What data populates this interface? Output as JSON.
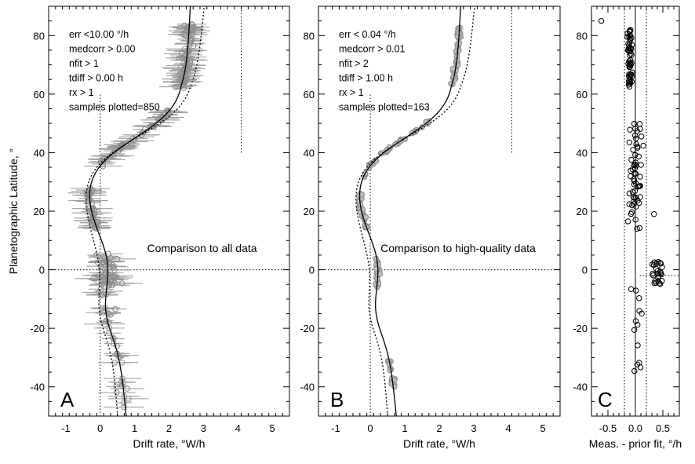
{
  "chart_data": [
    {
      "panel": "A",
      "type": "scatter",
      "xlabel": "Drift rate, °W/h",
      "ylabel": "Planetographic Latitude, °",
      "xlim": [
        -1.5,
        5.5
      ],
      "ylim": [
        -50,
        90
      ],
      "xticks": [
        -1,
        0,
        1,
        2,
        3,
        4,
        5
      ],
      "yticks": [
        -40,
        -20,
        0,
        20,
        40,
        60,
        80
      ],
      "legend": [
        "err <10.00 °/h",
        "medcorr > 0.00",
        "nfit >   1",
        "tdiff > 0.00 h",
        "rx >   1",
        "samples plotted=850"
      ],
      "annotation": "Comparison to all data",
      "series": [
        {
          "name": "measurements",
          "style": "gray-circles-with-error-bars",
          "samples": 850
        },
        {
          "name": "fit",
          "style": "solid"
        },
        {
          "name": "prior fit",
          "style": "dotted"
        }
      ]
    },
    {
      "panel": "B",
      "type": "scatter",
      "xlabel": "Drift rate, °W/h",
      "ylabel": "",
      "xlim": [
        -1.5,
        5.5
      ],
      "ylim": [
        -50,
        90
      ],
      "xticks": [
        -1,
        0,
        1,
        2,
        3,
        4,
        5
      ],
      "yticks": [
        -40,
        -20,
        0,
        20,
        40,
        60,
        80
      ],
      "legend": [
        "err < 0.04 °/h",
        "medcorr > 0.01",
        "nfit >   2",
        "tdiff > 1.00 h",
        "rx >   1",
        "samples plotted=163"
      ],
      "annotation": "Comparison to high-quality data",
      "series": [
        {
          "name": "measurements",
          "style": "gray-circles",
          "samples": 163
        },
        {
          "name": "fit",
          "style": "solid"
        },
        {
          "name": "prior fit",
          "style": "dotted"
        }
      ]
    },
    {
      "panel": "C",
      "type": "scatter",
      "xlabel": "Meas. - prior fit, °/h",
      "ylabel": "",
      "xlim": [
        -0.8,
        0.8
      ],
      "ylim": [
        -50,
        90
      ],
      "xticks": [
        -0.5,
        0.0,
        0.5
      ],
      "xtick_labels": [
        "-0.5",
        "0.0",
        "0.5"
      ],
      "yticks": [
        -40,
        -20,
        0,
        20,
        40,
        60,
        80
      ],
      "series": [
        {
          "name": "residuals",
          "style": "open-black-circles"
        }
      ]
    }
  ]
}
